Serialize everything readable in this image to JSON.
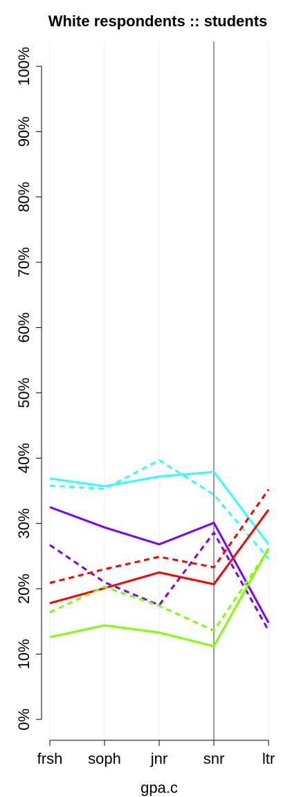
{
  "chart_data": {
    "type": "line",
    "title": "White respondents :: students",
    "xlabel": "gpa.c",
    "categories": [
      "frsh",
      "soph",
      "jnr",
      "snr",
      "ltr"
    ],
    "series": [
      {
        "color": "#2effff",
        "dash": false,
        "values": [
          36.9,
          35.7,
          37.2,
          37.9,
          26.8
        ]
      },
      {
        "color": "#2effff",
        "dash": true,
        "values": [
          35.8,
          35.3,
          39.7,
          34.4,
          24.6
        ]
      },
      {
        "color": "#7a00ff",
        "dash": false,
        "values": [
          32.5,
          29.4,
          26.8,
          30.1,
          14.8
        ]
      },
      {
        "color": "#7a00ff",
        "dash": true,
        "values": [
          26.7,
          21.0,
          17.5,
          28.6,
          13.6
        ]
      },
      {
        "color": "#ff0000",
        "dash": false,
        "values": [
          17.8,
          20.1,
          22.5,
          20.7,
          32.1
        ]
      },
      {
        "color": "#ff0000",
        "dash": true,
        "values": [
          20.9,
          23.0,
          24.9,
          23.3,
          35.2
        ]
      },
      {
        "color": "#80ff00",
        "dash": false,
        "values": [
          12.6,
          14.4,
          13.3,
          11.2,
          26.2
        ]
      },
      {
        "color": "#80ff00",
        "dash": true,
        "values": [
          16.4,
          20.3,
          17.4,
          13.6,
          26.0
        ]
      }
    ],
    "highlight_index": 3,
    "ylim": [
      -3.2,
      103.8
    ],
    "yticks": [
      {
        "value": 0,
        "label": "0%"
      },
      {
        "value": 10,
        "label": "10%"
      },
      {
        "value": 20,
        "label": "20%"
      },
      {
        "value": 30,
        "label": "30%"
      },
      {
        "value": 40,
        "label": "40%"
      },
      {
        "value": 50,
        "label": "50%"
      },
      {
        "value": 60,
        "label": "60%"
      },
      {
        "value": 70,
        "label": "70%"
      },
      {
        "value": 80,
        "label": "80%"
      },
      {
        "value": 90,
        "label": "90%"
      },
      {
        "value": 100,
        "label": "100%"
      }
    ],
    "grid": true
  }
}
